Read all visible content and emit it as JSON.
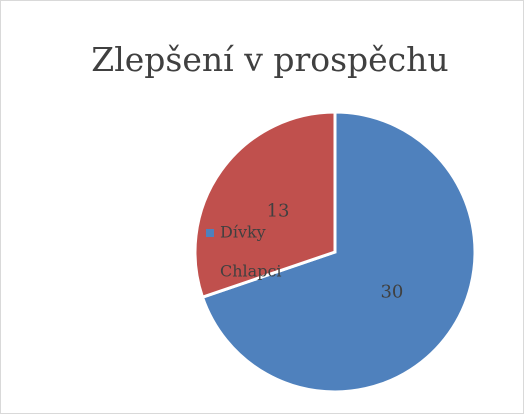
{
  "chart_data": {
    "type": "pie",
    "title": "Zlepšení v prospěchu",
    "categories": [
      "Dívky",
      "Chlapci"
    ],
    "values": [
      30,
      13
    ],
    "colors": [
      "#4f81bd",
      "#c0504d"
    ],
    "legend": "left",
    "data_labels": true
  }
}
